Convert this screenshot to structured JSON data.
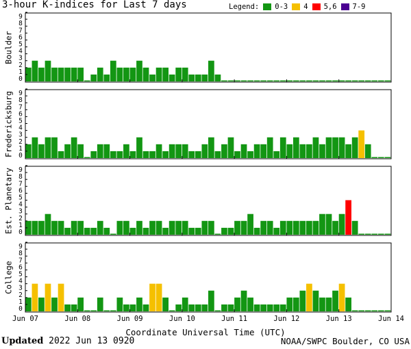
{
  "title": "3-hour K-indices for Last 7 days",
  "legend": {
    "label": "Legend:",
    "items": [
      {
        "label": "0-3",
        "color": "#139613"
      },
      {
        "label": "4",
        "color": "#f5c000"
      },
      {
        "label": "5,6",
        "color": "#ff0000"
      },
      {
        "label": "7-9",
        "color": "#4b0092"
      }
    ]
  },
  "footer": {
    "xlabel": "Coordinate Universal Time (UTC)",
    "updated_label": "Updated",
    "updated_value": "2022 Jun 13 0920",
    "source": "NOAA/SWPC Boulder, CO USA"
  },
  "chart_data": {
    "type": "bar",
    "x_ticks": [
      "Jun 07",
      "Jun 08",
      "Jun 09",
      "Jun 10",
      "Jun 11",
      "Jun 12",
      "Jun 13",
      "Jun 14"
    ],
    "ylim": [
      0,
      9
    ],
    "y_ticks": [
      "0",
      "1",
      "2",
      "3",
      "4",
      "5",
      "6",
      "7",
      "8",
      "9"
    ],
    "grid": false,
    "bars_per_day": 8,
    "panels": [
      {
        "name": "Boulder",
        "values": [
          2,
          3,
          2,
          3,
          2,
          2,
          2,
          2,
          2,
          0,
          1,
          2,
          1,
          3,
          2,
          2,
          2,
          3,
          2,
          1,
          2,
          2,
          1,
          2,
          2,
          1,
          1,
          1,
          3,
          1,
          0,
          0,
          0,
          0,
          0,
          0,
          0,
          0,
          0,
          0,
          0,
          0,
          0,
          0,
          0,
          0,
          0,
          0,
          0,
          0,
          0,
          0,
          0,
          0,
          0,
          0
        ]
      },
      {
        "name": "Fredericksburg",
        "values": [
          2,
          3,
          2,
          3,
          3,
          1,
          2,
          3,
          2,
          0,
          1,
          2,
          2,
          1,
          1,
          2,
          1,
          3,
          1,
          1,
          2,
          1,
          2,
          2,
          2,
          1,
          1,
          2,
          3,
          1,
          2,
          3,
          1,
          2,
          1,
          2,
          2,
          3,
          1,
          3,
          2,
          3,
          2,
          2,
          3,
          2,
          3,
          3,
          3,
          2,
          3,
          4,
          2,
          0,
          0,
          0
        ]
      },
      {
        "name": "Est. Planetary",
        "values": [
          2,
          2,
          2,
          3,
          2,
          2,
          1,
          2,
          2,
          1,
          1,
          2,
          1,
          0,
          2,
          2,
          1,
          2,
          1,
          2,
          2,
          1,
          2,
          2,
          2,
          1,
          1,
          2,
          2,
          0,
          1,
          1,
          2,
          2,
          3,
          1,
          2,
          2,
          1,
          2,
          2,
          2,
          2,
          2,
          2,
          3,
          3,
          2,
          3,
          5,
          2,
          0,
          0,
          0,
          0,
          0
        ]
      },
      {
        "name": "College",
        "values": [
          2,
          4,
          2,
          4,
          2,
          4,
          1,
          1,
          2,
          0,
          0,
          2,
          0,
          0,
          2,
          1,
          1,
          2,
          1,
          4,
          4,
          2,
          0,
          1,
          2,
          1,
          1,
          1,
          3,
          0,
          1,
          1,
          2,
          3,
          2,
          1,
          1,
          1,
          1,
          1,
          2,
          2,
          3,
          4,
          3,
          2,
          2,
          3,
          4,
          2,
          0,
          0,
          0,
          0,
          0,
          0
        ]
      }
    ]
  }
}
